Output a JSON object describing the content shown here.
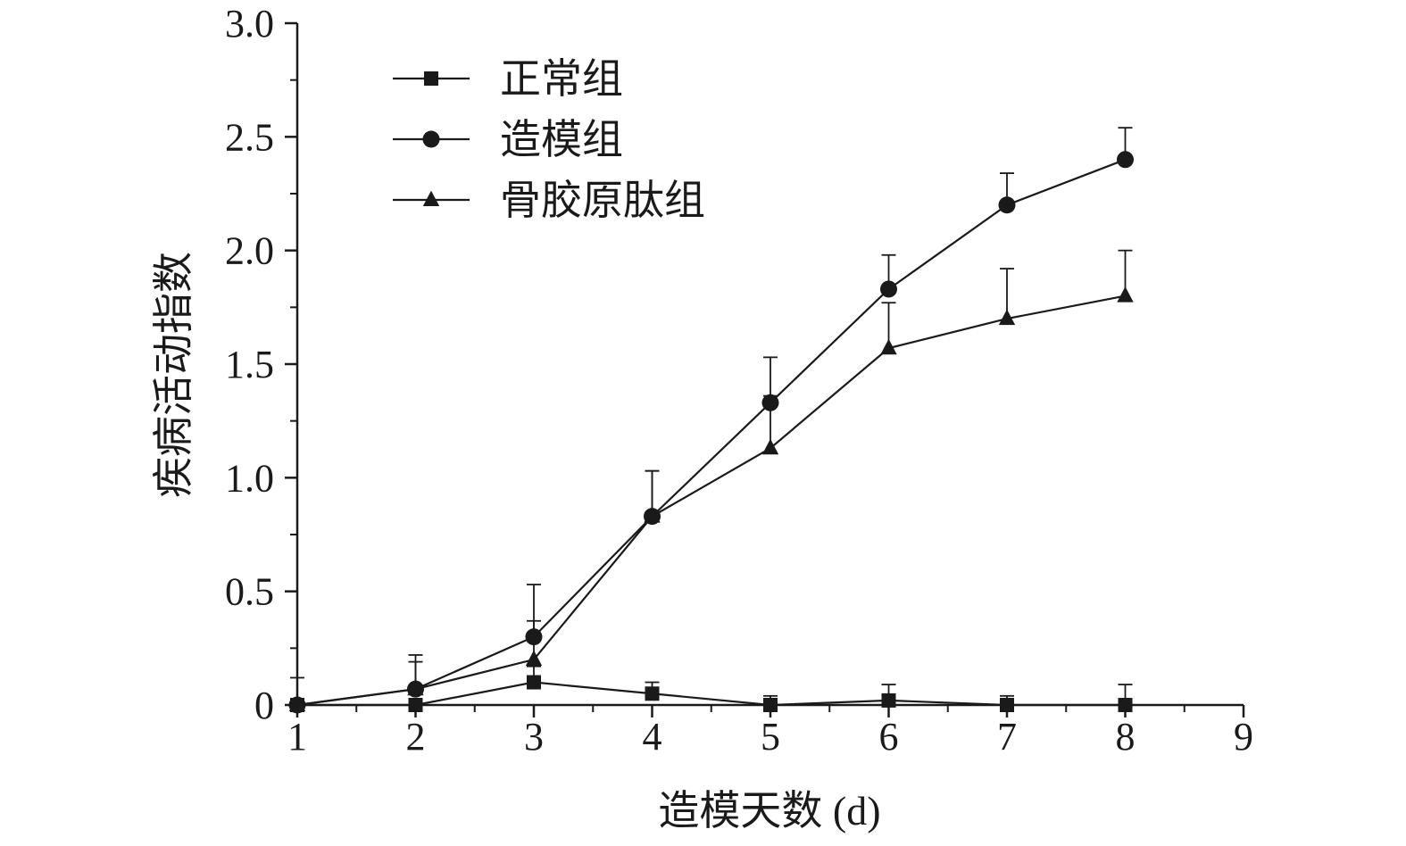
{
  "chart_data": {
    "type": "line",
    "title": "",
    "xlabel": "造模天数 (d)",
    "ylabel": "疾病活动指数",
    "xlim": [
      1,
      9
    ],
    "ylim": [
      0,
      3.0
    ],
    "x_ticks": [
      "1",
      "2",
      "3",
      "4",
      "5",
      "6",
      "7",
      "8",
      "9"
    ],
    "y_ticks": [
      "0",
      "0.5",
      "1.0",
      "1.5",
      "2.0",
      "2.5",
      "3.0"
    ],
    "grid": false,
    "legend_position": "top-left",
    "series": [
      {
        "name": "正常组",
        "marker": "square",
        "x": [
          1,
          2,
          3,
          4,
          5,
          6,
          7,
          8
        ],
        "y": [
          0,
          0,
          0.1,
          0.05,
          0,
          0.02,
          0,
          0
        ],
        "error": [
          0.12,
          0.0,
          0.07,
          0.05,
          0.04,
          0.07,
          0.04,
          0.09
        ]
      },
      {
        "name": "造模组",
        "marker": "circle",
        "x": [
          1,
          2,
          3,
          4,
          5,
          6,
          7,
          8
        ],
        "y": [
          0,
          0.07,
          0.3,
          0.83,
          1.33,
          1.83,
          2.2,
          2.4
        ],
        "error": [
          0.0,
          0.15,
          0.23,
          0.2,
          0.2,
          0.15,
          0.14,
          0.14
        ]
      },
      {
        "name": "骨胶原肽组",
        "marker": "triangle",
        "x": [
          1,
          2,
          3,
          4,
          5,
          6,
          7,
          8
        ],
        "y": [
          0,
          0.07,
          0.2,
          0.83,
          1.13,
          1.57,
          1.7,
          1.8
        ],
        "error": [
          0.0,
          0.12,
          0.17,
          0.2,
          0.23,
          0.2,
          0.22,
          0.2
        ]
      }
    ]
  }
}
